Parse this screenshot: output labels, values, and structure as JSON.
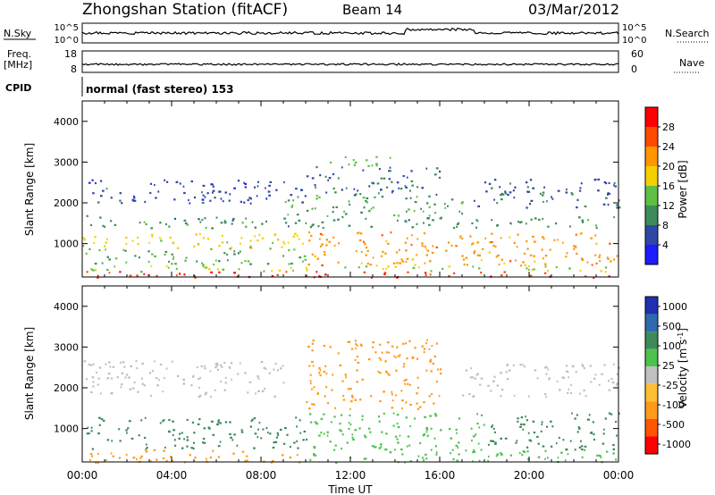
{
  "header": {
    "title": "Zhongshan Station (fitACF)",
    "beam": "Beam 14",
    "date": "03/Mar/2012"
  },
  "noise_panel": {
    "left_label": "N.Sky",
    "right_label": "N.Search",
    "ticks_left": [
      "10^5",
      "10^0"
    ],
    "ticks_right": [
      "10^5",
      "10^0"
    ]
  },
  "freq_panel": {
    "left_label_line1": "Freq.",
    "left_label_line2": "[MHz]",
    "right_label": "Nave",
    "ticks_left": [
      "18",
      "8"
    ],
    "ticks_right": [
      "60",
      "0"
    ]
  },
  "cpid": {
    "label": "CPID",
    "value": "normal (fast stereo) 153"
  },
  "colors": {
    "power": [
      "#1c1cff",
      "#2f47a6",
      "#3f8a5a",
      "#5fbf44",
      "#f5d000",
      "#ff9600",
      "#ff4b00",
      "#ff0000"
    ],
    "velocity": [
      "#ff0000",
      "#ff5500",
      "#ff9a1a",
      "#ffbf33",
      "#c0c0c0",
      "#4ec24e",
      "#3f8a5a",
      "#2f6ab0",
      "#2030b0"
    ]
  },
  "chart_data": [
    {
      "type": "heatmap",
      "title": "Power",
      "ylabel": "Slant Range [km]",
      "xlabel": "",
      "x_range": [
        "00:00",
        "24:00"
      ],
      "ylim": [
        180,
        4500
      ],
      "y_ticks": [
        "1000",
        "2000",
        "3000",
        "4000"
      ],
      "colorbar_label": "Power [dB]",
      "colorbar_ticks": [
        "4",
        "8",
        "12",
        "16",
        "20",
        "24",
        "28"
      ],
      "colorbar_range": [
        0,
        32
      ],
      "clusters": [
        {
          "t": [
            0,
            24
          ],
          "r": [
            180,
            330
          ],
          "v": 28
        },
        {
          "t": [
            0,
            24
          ],
          "r": [
            330,
            480
          ],
          "v": 16
        },
        {
          "t": [
            0,
            10
          ],
          "r": [
            480,
            900
          ],
          "v": 12
        },
        {
          "t": [
            10,
            24
          ],
          "r": [
            480,
            1300
          ],
          "v": 22
        },
        {
          "t": [
            0,
            10
          ],
          "r": [
            900,
            1300
          ],
          "v": 18
        },
        {
          "t": [
            0,
            24
          ],
          "r": [
            1400,
            1700
          ],
          "v": 10
        },
        {
          "t": [
            9,
            17
          ],
          "r": [
            1700,
            2200
          ],
          "v": 12
        },
        {
          "t": [
            0,
            10
          ],
          "r": [
            2000,
            2600
          ],
          "v": 6
        },
        {
          "t": [
            10,
            16
          ],
          "r": [
            2200,
            2900
          ],
          "v": 8
        },
        {
          "t": [
            11,
            14
          ],
          "r": [
            2900,
            3200
          ],
          "v": 14
        },
        {
          "t": [
            17,
            24
          ],
          "r": [
            1900,
            2600
          ],
          "v": 7
        }
      ]
    },
    {
      "type": "heatmap",
      "title": "Velocity",
      "ylabel": "Slant Range [km]",
      "xlabel": "Time UT",
      "x_ticks": [
        "00:00",
        "04:00",
        "08:00",
        "12:00",
        "16:00",
        "20:00",
        "00:00"
      ],
      "ylim": [
        180,
        4500
      ],
      "y_ticks": [
        "1000",
        "2000",
        "3000",
        "4000"
      ],
      "colorbar_label": "Velocity [m s-1]",
      "colorbar_ticks": [
        "1000",
        "500",
        "100",
        "25",
        "-25",
        "-100",
        "-500",
        "-1000"
      ],
      "clusters": [
        {
          "t": [
            0,
            10
          ],
          "r": [
            180,
            500
          ],
          "v": -100
        },
        {
          "t": [
            10,
            24
          ],
          "r": [
            180,
            500
          ],
          "v": 100
        },
        {
          "t": [
            0,
            10
          ],
          "r": [
            500,
            1300
          ],
          "v": 500
        },
        {
          "t": [
            10,
            18
          ],
          "r": [
            500,
            1400
          ],
          "v": 100
        },
        {
          "t": [
            18,
            24
          ],
          "r": [
            500,
            1400
          ],
          "v": 500
        },
        {
          "t": [
            10,
            16
          ],
          "r": [
            1500,
            3200
          ],
          "v": -100
        },
        {
          "t": [
            0,
            9
          ],
          "r": [
            1800,
            2700
          ],
          "v": 25
        },
        {
          "t": [
            17,
            24
          ],
          "r": [
            1800,
            2600
          ],
          "v": 25
        }
      ]
    }
  ]
}
